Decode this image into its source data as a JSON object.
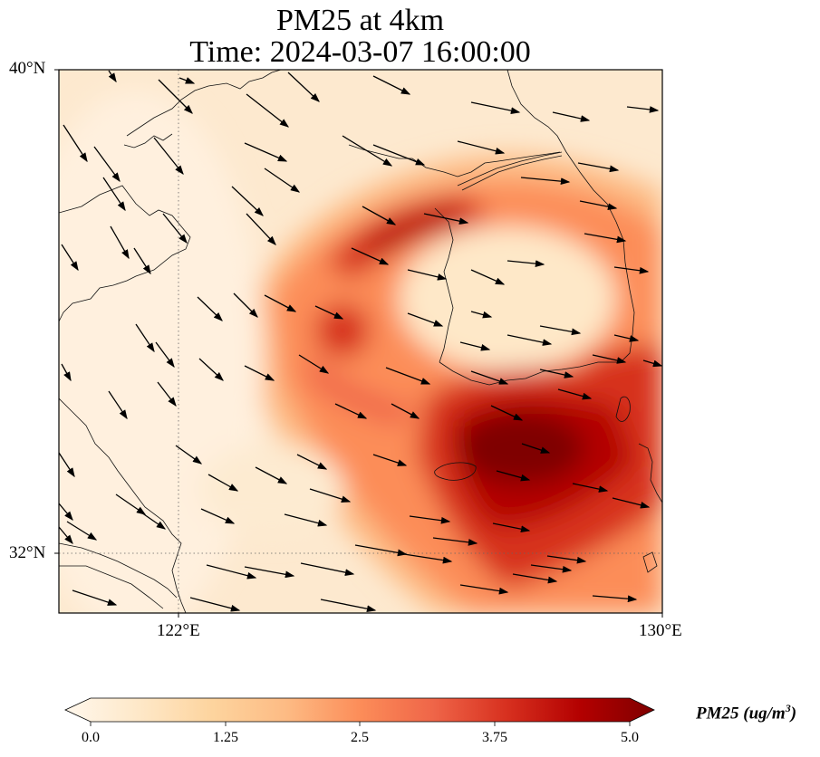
{
  "title": {
    "line1": "PM25 at 4km",
    "line2": "Time: 2024-03-07 16:00:00"
  },
  "axes": {
    "lat_labels": [
      "40°N",
      "32°N"
    ],
    "lon_labels": [
      "122°E",
      "130°E"
    ]
  },
  "extent": {
    "lon": [
      120,
      130
    ],
    "lat": [
      31,
      40
    ]
  },
  "colorbar": {
    "label": "PM25 (ug/m$^3$)",
    "label_text": "PM25 (ug/m",
    "label_sup": "3",
    "label_close": ")",
    "ticks": [
      "0.0",
      "1.25",
      "2.5",
      "3.75",
      "5.0"
    ],
    "min": 0.0,
    "max": 5.0,
    "colormap": "OrRd",
    "colors": [
      "#fff7ec",
      "#fee8c8",
      "#fdd49e",
      "#fdbb84",
      "#fc8d59",
      "#ef6548",
      "#d7301f",
      "#b30000",
      "#7f0000"
    ]
  }
}
